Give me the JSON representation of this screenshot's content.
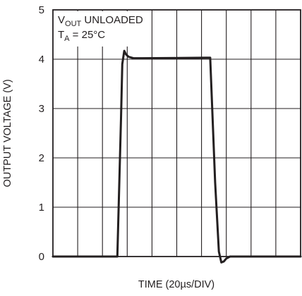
{
  "chart_data": {
    "type": "line",
    "title": "",
    "xlabel": "TIME (20µs/DIV)",
    "ylabel": "OUTPUT VOLTAGE (V)",
    "xlim": [
      0,
      10
    ],
    "ylim": [
      0,
      5
    ],
    "x_grid_divisions": 10,
    "y_ticks": [
      "0",
      "1",
      "2",
      "3",
      "4",
      "5"
    ],
    "grid": true,
    "annotation": {
      "line1_main": "V",
      "line1_sub": "OUT",
      "line1_rest": " UNLOADED",
      "line2_main": "T",
      "line2_sub": "A",
      "line2_rest": " = 25°C"
    },
    "series": [
      {
        "values_unit": "V",
        "x": [
          0,
          2.6,
          2.75,
          2.8,
          2.88,
          2.95,
          3.05,
          3.25,
          3.6,
          6.2,
          6.35,
          6.55,
          6.7,
          6.8,
          6.9,
          7.0,
          7.15,
          7.3,
          10
        ],
        "y": [
          0,
          0,
          2.8,
          3.9,
          4.17,
          4.1,
          4.05,
          4.02,
          4.02,
          4.03,
          4.03,
          1.5,
          0.1,
          -0.12,
          -0.1,
          -0.04,
          0,
          0,
          0
        ]
      }
    ],
    "colors": {
      "line": "#231f20",
      "grid": "#231f20",
      "frame": "#231f20"
    }
  }
}
